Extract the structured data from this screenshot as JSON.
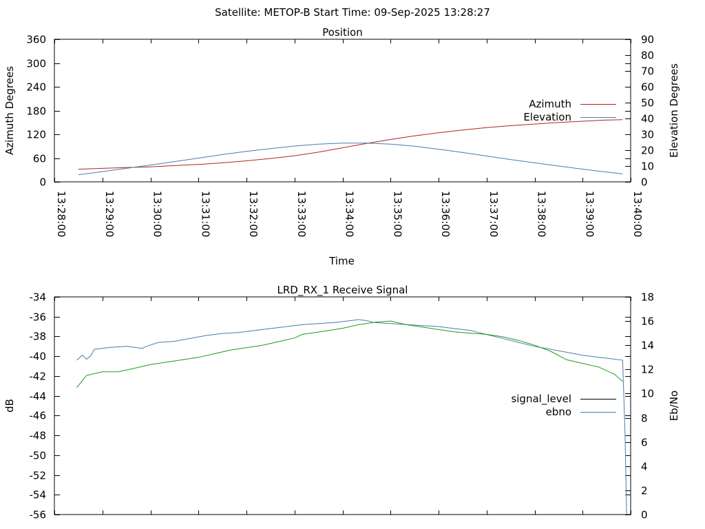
{
  "suptitle": "Satellite: METOP-B    Start Time: 09-Sep-2025 13:28:27",
  "chart_data": [
    {
      "type": "line",
      "title": "Position",
      "xlabel": "Time",
      "ylabel": "Azimuth Degrees",
      "y2label": "Elevation Degrees",
      "x_ticks": [
        "13:28:00",
        "13:29:00",
        "13:30:00",
        "13:31:00",
        "13:32:00",
        "13:33:00",
        "13:34:00",
        "13:35:00",
        "13:36:00",
        "13:37:00",
        "13:38:00",
        "13:39:00",
        "13:40:00"
      ],
      "xlim": [
        "13:28:00",
        "13:40:00"
      ],
      "ylim": [
        0,
        360
      ],
      "yticks": [
        0,
        60,
        120,
        180,
        240,
        300,
        360
      ],
      "y2lim": [
        0,
        90
      ],
      "y2ticks": [
        0,
        10,
        20,
        30,
        40,
        50,
        60,
        70,
        80,
        90
      ],
      "legend_position": "right",
      "series": [
        {
          "name": "Azimuth",
          "axis": "y",
          "color": "#b22222",
          "x": [
            "13:28:30",
            "13:29:00",
            "13:29:30",
            "13:30:00",
            "13:30:30",
            "13:31:00",
            "13:31:30",
            "13:32:00",
            "13:32:30",
            "13:33:00",
            "13:33:30",
            "13:34:00",
            "13:34:30",
            "13:35:00",
            "13:35:30",
            "13:36:00",
            "13:36:30",
            "13:37:00",
            "13:37:30",
            "13:38:00",
            "13:38:30",
            "13:39:00",
            "13:39:30",
            "13:39:50"
          ],
          "values": [
            32,
            34,
            36,
            38,
            41,
            44,
            48,
            53,
            59,
            66,
            75,
            86,
            97,
            107,
            116,
            124,
            131,
            137,
            142,
            146,
            150,
            153,
            156,
            157
          ]
        },
        {
          "name": "Elevation",
          "axis": "y2",
          "color": "#4a7aa8",
          "x": [
            "13:28:30",
            "13:29:00",
            "13:29:30",
            "13:30:00",
            "13:30:30",
            "13:31:00",
            "13:31:30",
            "13:32:00",
            "13:32:30",
            "13:33:00",
            "13:33:30",
            "13:34:00",
            "13:34:30",
            "13:35:00",
            "13:35:30",
            "13:36:00",
            "13:36:30",
            "13:37:00",
            "13:37:30",
            "13:38:00",
            "13:38:30",
            "13:39:00",
            "13:39:30",
            "13:39:50"
          ],
          "values": [
            4.5,
            6.5,
            8.5,
            10.6,
            12.8,
            15.0,
            17.2,
            19.2,
            21.0,
            22.6,
            23.8,
            24.5,
            24.5,
            23.8,
            22.5,
            20.6,
            18.5,
            16.3,
            14.1,
            12.0,
            10.0,
            8.0,
            6.2,
            5.0
          ]
        }
      ]
    },
    {
      "type": "line",
      "title": "LRD_RX_1 Receive Signal",
      "xlabel": "",
      "ylabel": "dB",
      "y2label": "Eb/No",
      "xlim": [
        "13:28:00",
        "13:40:00"
      ],
      "ylim": [
        -56,
        -34
      ],
      "yticks": [
        -56,
        -54,
        -52,
        -50,
        -48,
        -46,
        -44,
        -42,
        -40,
        -38,
        -36,
        -34
      ],
      "y2lim": [
        0,
        18
      ],
      "y2ticks": [
        0,
        2,
        4,
        6,
        8,
        10,
        12,
        14,
        16,
        18
      ],
      "legend_position": "right",
      "legend": [
        {
          "name": "signal_level",
          "color": "#000000"
        },
        {
          "name": "ebno",
          "color": "#4a7aa8"
        }
      ],
      "series": [
        {
          "name": "signal_level",
          "axis": "y",
          "color": "#4a7aa8",
          "x": [
            "13:28:28",
            "13:28:35",
            "13:28:40",
            "13:28:45",
            "13:28:50",
            "13:29:10",
            "13:29:30",
            "13:29:50",
            "13:29:55",
            "13:30:10",
            "13:30:30",
            "13:30:50",
            "13:31:10",
            "13:31:30",
            "13:31:50",
            "13:32:10",
            "13:32:30",
            "13:32:50",
            "13:33:10",
            "13:33:30",
            "13:33:50",
            "13:34:00",
            "13:34:10",
            "13:34:20",
            "13:34:30",
            "13:34:40",
            "13:35:00",
            "13:35:20",
            "13:35:40",
            "13:36:00",
            "13:36:20",
            "13:36:40",
            "13:36:50",
            "13:37:00",
            "13:37:20",
            "13:37:40",
            "13:38:00",
            "13:38:20",
            "13:38:40",
            "13:39:00",
            "13:39:20",
            "13:39:40",
            "13:39:50",
            "13:39:53",
            "13:39:55"
          ],
          "values": [
            -40.4,
            -39.9,
            -40.3,
            -40.0,
            -39.3,
            -39.1,
            -39.0,
            -39.2,
            -39.0,
            -38.6,
            -38.5,
            -38.2,
            -37.9,
            -37.7,
            -37.6,
            -37.4,
            -37.2,
            -37.0,
            -36.8,
            -36.7,
            -36.6,
            -36.5,
            -36.4,
            -36.3,
            -36.4,
            -36.6,
            -36.7,
            -36.8,
            -36.9,
            -37.0,
            -37.2,
            -37.4,
            -37.6,
            -37.8,
            -38.2,
            -38.6,
            -39.0,
            -39.3,
            -39.6,
            -39.9,
            -40.1,
            -40.3,
            -40.4,
            -48.0,
            -56.0
          ]
        },
        {
          "name": "ebno",
          "axis": "y2",
          "color": "#1a9c1a",
          "x": [
            "13:28:28",
            "13:28:40",
            "13:29:00",
            "13:29:20",
            "13:29:40",
            "13:30:00",
            "13:30:20",
            "13:30:40",
            "13:31:00",
            "13:31:20",
            "13:31:40",
            "13:32:00",
            "13:32:20",
            "13:32:40",
            "13:33:00",
            "13:33:10",
            "13:33:20",
            "13:33:40",
            "13:34:00",
            "13:34:20",
            "13:34:40",
            "13:35:00",
            "13:35:20",
            "13:35:40",
            "13:36:00",
            "13:36:20",
            "13:36:40",
            "13:37:00",
            "13:37:20",
            "13:37:40",
            "13:38:00",
            "13:38:20",
            "13:38:40",
            "13:39:00",
            "13:39:20",
            "13:39:40",
            "13:39:50"
          ],
          "values": [
            10.5,
            11.5,
            11.8,
            11.8,
            12.1,
            12.4,
            12.6,
            12.8,
            13.0,
            13.3,
            13.6,
            13.8,
            14.0,
            14.3,
            14.6,
            14.9,
            15.0,
            15.2,
            15.4,
            15.7,
            15.9,
            16.0,
            15.7,
            15.5,
            15.3,
            15.1,
            15.0,
            14.9,
            14.7,
            14.4,
            14.0,
            13.5,
            12.8,
            12.5,
            12.2,
            11.6,
            11.0
          ]
        }
      ]
    }
  ]
}
